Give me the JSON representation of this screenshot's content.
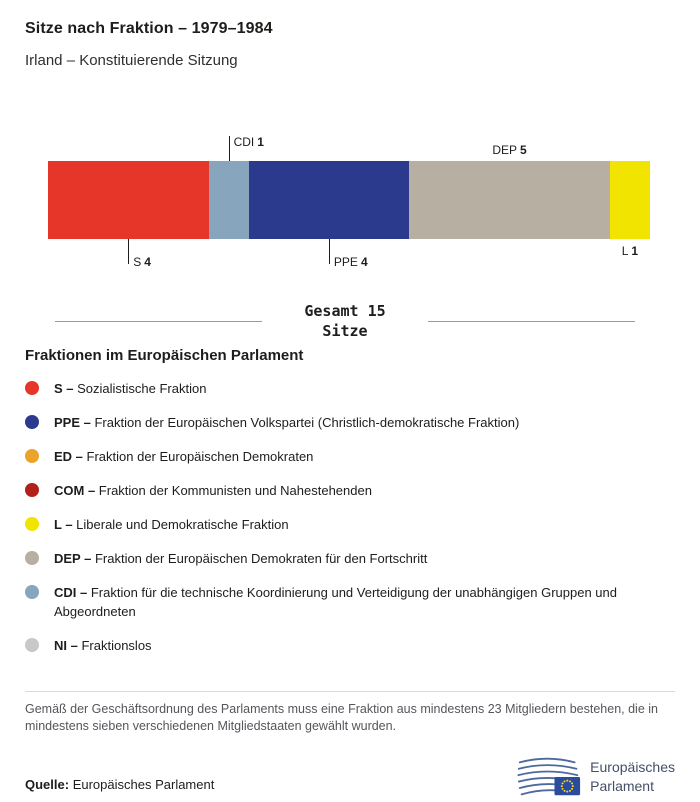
{
  "header": {
    "title": "Sitze nach Fraktion – 1979–1984",
    "subtitle": "Irland – Konstituierende Sitzung"
  },
  "chart_data": {
    "type": "bar",
    "orientation": "horizontal",
    "stacked": true,
    "title": "Sitze nach Fraktion – 1979–1984",
    "subtitle": "Irland – Konstituierende Sitzung",
    "total_seats": 15,
    "total_label_line1": "Gesamt 15",
    "total_label_line2": "Sitze",
    "segments": [
      {
        "code": "S",
        "seats": 4,
        "color": "#e63529"
      },
      {
        "code": "CDI",
        "seats": 1,
        "color": "#87a6bd"
      },
      {
        "code": "PPE",
        "seats": 4,
        "color": "#2b3a8c"
      },
      {
        "code": "DEP",
        "seats": 5,
        "color": "#b7b0a2"
      },
      {
        "code": "L",
        "seats": 1,
        "color": "#f1e400"
      }
    ]
  },
  "legend": {
    "heading": "Fraktionen im Europäischen Parlament",
    "items": [
      {
        "code": "S –",
        "description": "Sozialistische Fraktion",
        "color": "#e63529"
      },
      {
        "code": "PPE –",
        "description": "Fraktion der Europäischen Volkspartei (Christlich-demokratische Fraktion)",
        "color": "#2b3a8c"
      },
      {
        "code": "ED –",
        "description": "Fraktion der Europäischen Demokraten",
        "color": "#eba42b"
      },
      {
        "code": "COM –",
        "description": "Fraktion der Kommunisten und Nahestehenden",
        "color": "#b2201c"
      },
      {
        "code": "L –",
        "description": "Liberale und Demokratische Fraktion",
        "color": "#f1e400"
      },
      {
        "code": "DEP –",
        "description": "Fraktion der Europäischen Demokraten für den Fortschritt",
        "color": "#b7b0a2"
      },
      {
        "code": "CDI –",
        "description": "Fraktion für die technische Koordinierung und Verteidigung der unabhängigen Gruppen und Abgeordneten",
        "color": "#87a6bd"
      },
      {
        "code": "NI –",
        "description": "Fraktionslos",
        "color": "#c8c8c8"
      }
    ]
  },
  "footer": {
    "note": "Gemäß der Geschäftsordnung des Parlaments muss eine Fraktion aus mindestens 23 Mitgliedern bestehen, die in mindestens sieben verschiedenen Mitgliedstaaten gewählt wurden.",
    "source_label": "Quelle:",
    "source_value": "Europäisches Parlament",
    "logo_line1": "Europäisches",
    "logo_line2": "Parlament"
  }
}
